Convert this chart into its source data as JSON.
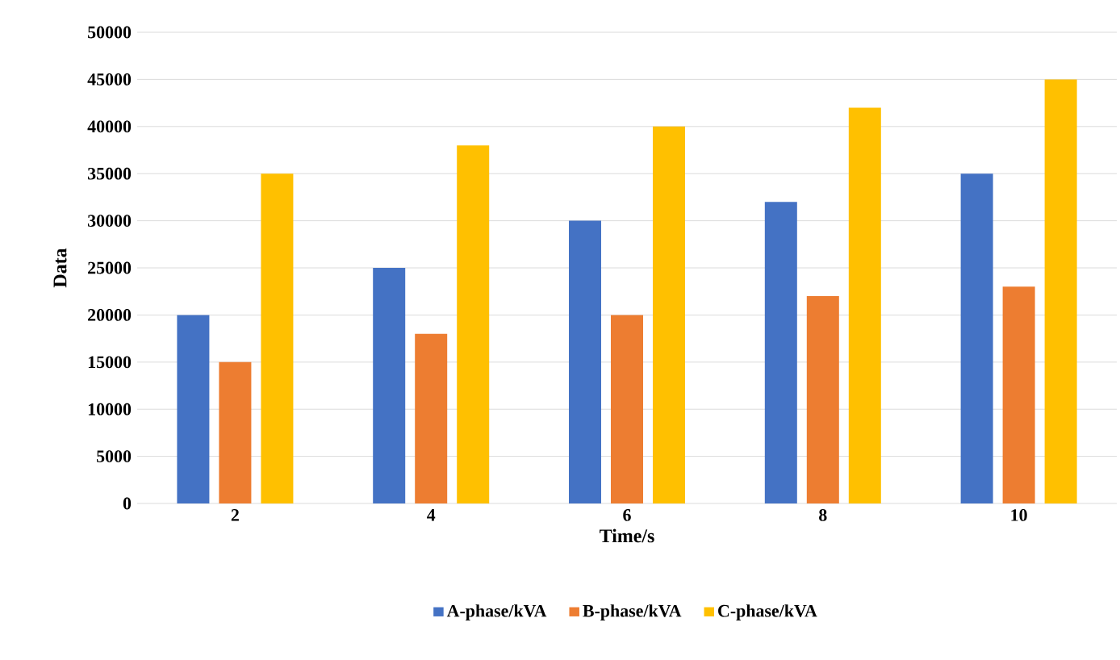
{
  "chart_data": {
    "type": "bar",
    "xlabel": "Time/s",
    "ylabel": "Data",
    "categories": [
      "2",
      "4",
      "6",
      "8",
      "10"
    ],
    "series": [
      {
        "name": "A-phase/kVA",
        "color": "#4472c4",
        "values": [
          20000,
          25000,
          30000,
          32000,
          35000
        ]
      },
      {
        "name": "B-phase/kVA",
        "color": "#ed7d31",
        "values": [
          15000,
          18000,
          20000,
          22000,
          23000
        ]
      },
      {
        "name": "C-phase/kVA",
        "color": "#ffc000",
        "values": [
          35000,
          38000,
          40000,
          42000,
          45000
        ]
      }
    ],
    "ylim": [
      0,
      50000
    ],
    "yticks": [
      0,
      5000,
      10000,
      15000,
      20000,
      25000,
      30000,
      35000,
      40000,
      45000,
      50000
    ],
    "grid": "y",
    "legend": "bottom"
  }
}
